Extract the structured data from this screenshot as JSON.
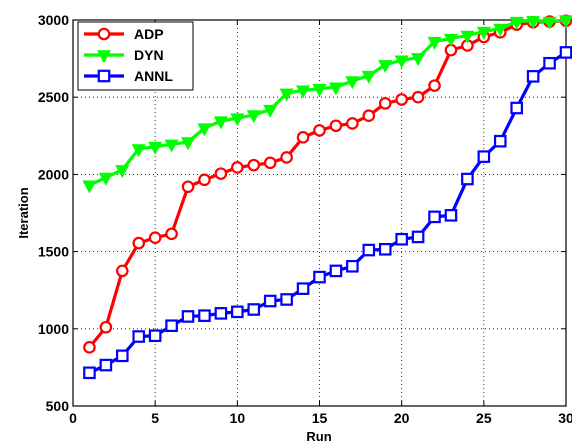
{
  "chart_data": {
    "type": "line",
    "xlabel": "Run",
    "ylabel": "Iteration",
    "xlim": [
      0,
      30
    ],
    "ylim": [
      500,
      3000
    ],
    "xticks": [
      0,
      5,
      10,
      15,
      20,
      25,
      30
    ],
    "yticks": [
      500,
      1000,
      1500,
      2000,
      2500,
      3000
    ],
    "grid": true,
    "legend_position": "top-left",
    "x": [
      1,
      2,
      3,
      4,
      5,
      6,
      7,
      8,
      9,
      10,
      11,
      12,
      13,
      14,
      15,
      16,
      17,
      18,
      19,
      20,
      21,
      22,
      23,
      24,
      25,
      26,
      27,
      28,
      29,
      30
    ],
    "series": [
      {
        "name": "ADP",
        "color": "#ff0000",
        "marker": "circle",
        "values": [
          880,
          1010,
          1375,
          1555,
          1590,
          1615,
          1920,
          1965,
          2005,
          2045,
          2060,
          2075,
          2110,
          2240,
          2285,
          2315,
          2330,
          2380,
          2460,
          2485,
          2500,
          2575,
          2805,
          2835,
          2890,
          2920,
          2970,
          2985,
          2990,
          2995
        ]
      },
      {
        "name": "DYN",
        "color": "#00ff00",
        "marker": "triangle-down",
        "values": [
          1930,
          1980,
          2030,
          2165,
          2180,
          2195,
          2210,
          2300,
          2345,
          2365,
          2385,
          2420,
          2525,
          2545,
          2555,
          2565,
          2605,
          2640,
          2710,
          2740,
          2755,
          2860,
          2880,
          2900,
          2925,
          2945,
          2990,
          2995,
          2990,
          3000
        ]
      },
      {
        "name": "ANNL",
        "color": "#0000ff",
        "marker": "square",
        "values": [
          715,
          765,
          825,
          950,
          955,
          1020,
          1080,
          1085,
          1100,
          1110,
          1125,
          1180,
          1190,
          1260,
          1335,
          1375,
          1405,
          1510,
          1515,
          1580,
          1595,
          1725,
          1735,
          1970,
          2115,
          2215,
          2430,
          2635,
          2720,
          2790
        ]
      }
    ]
  }
}
